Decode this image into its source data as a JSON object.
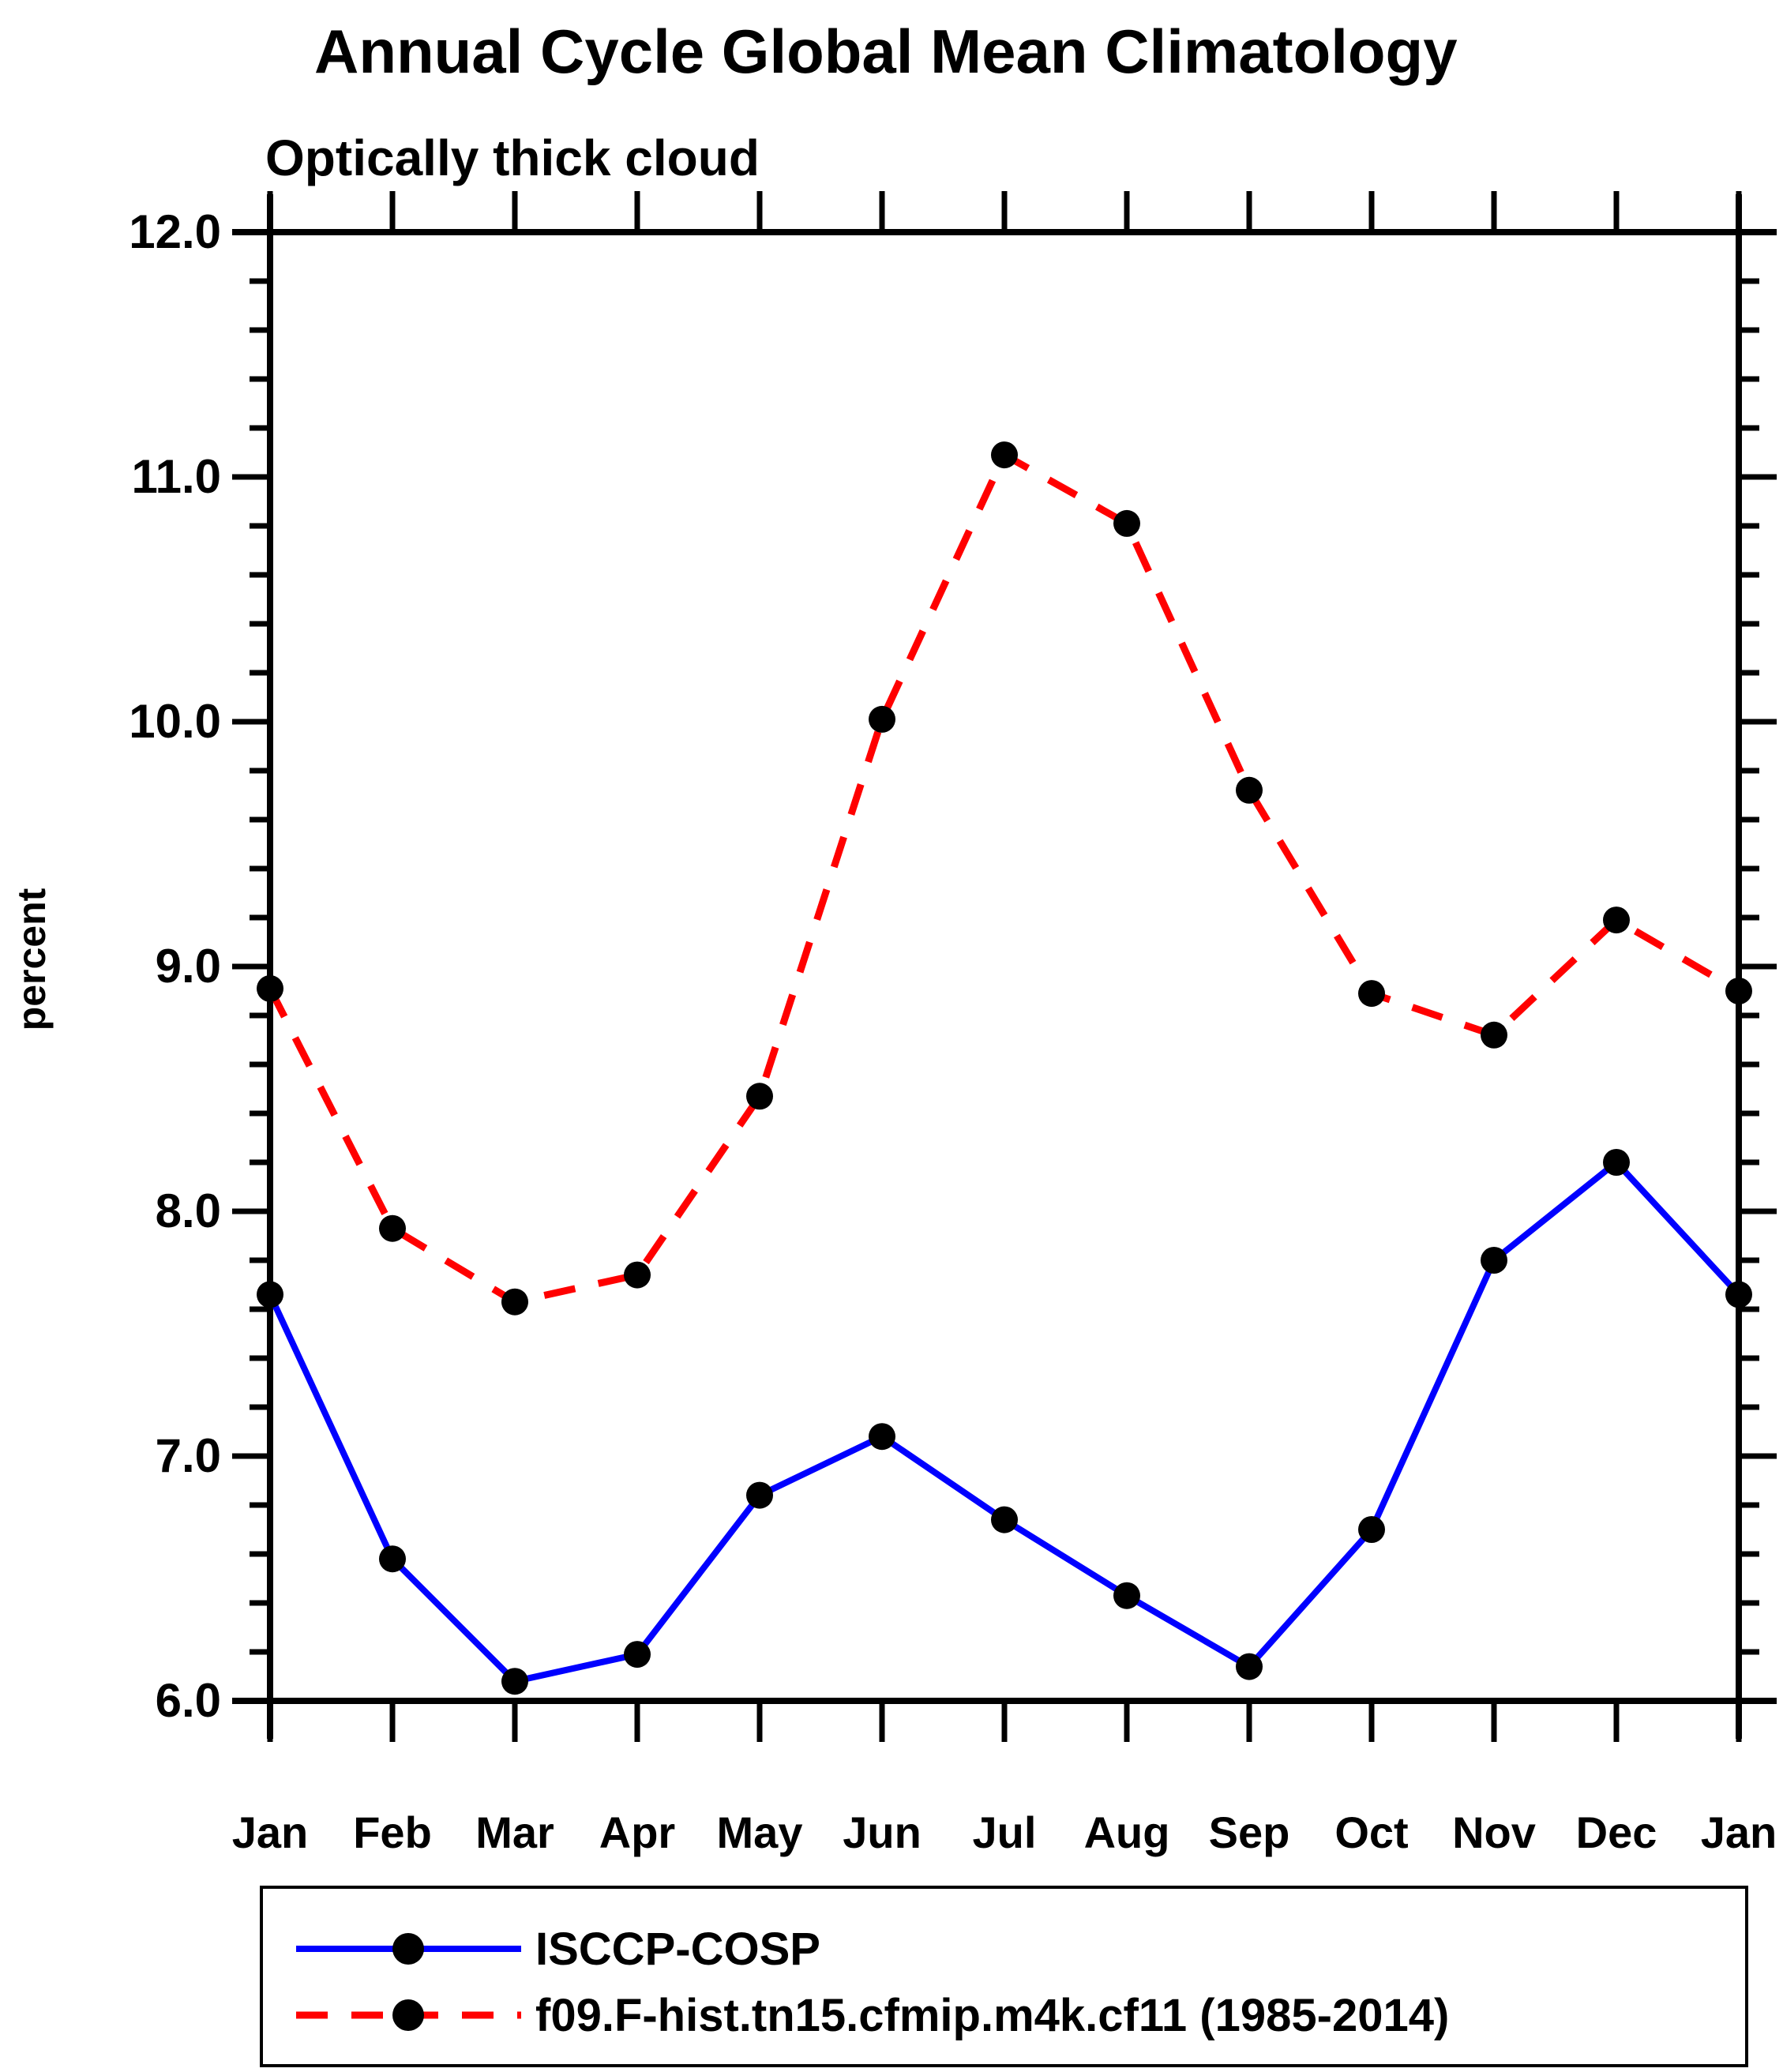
{
  "chart": {
    "title": "Annual Cycle Global Mean Climatology",
    "subtitle": "Optically thick cloud",
    "ylabel": "percent"
  },
  "chart_data": {
    "type": "line",
    "title": "Annual Cycle Global Mean Climatology",
    "subtitle": "Optically thick cloud",
    "xlabel": "",
    "ylabel": "percent",
    "categories": [
      "Jan",
      "Feb",
      "Mar",
      "Apr",
      "May",
      "Jun",
      "Jul",
      "Aug",
      "Sep",
      "Oct",
      "Nov",
      "Dec",
      "Jan"
    ],
    "series": [
      {
        "name": "ISCCP-COSP",
        "color": "#0000ff",
        "line_style": "solid",
        "marker": "filled-circle",
        "marker_color": "#000000",
        "values": [
          7.66,
          6.58,
          6.08,
          6.19,
          6.84,
          7.08,
          6.74,
          6.43,
          6.14,
          6.7,
          7.8,
          8.2,
          7.66
        ]
      },
      {
        "name": "f09.F-hist.tn15.cfmip.m4k.cf11 (1985-2014)",
        "color": "#ff0000",
        "line_style": "dashed",
        "marker": "filled-circle",
        "marker_color": "#000000",
        "values": [
          8.91,
          7.93,
          7.63,
          7.74,
          8.47,
          10.01,
          11.09,
          10.81,
          9.72,
          8.89,
          8.72,
          9.19,
          8.9
        ]
      }
    ],
    "ylim": [
      6.0,
      12.0
    ],
    "ytick_interval": 1.0,
    "ytick_minor_interval": 0.2,
    "ytick_labels": [
      "6.0",
      "7.0",
      "8.0",
      "9.0",
      "10.0",
      "11.0",
      "12.0"
    ],
    "grid": false,
    "legend_position": "bottom",
    "axis_color": "#000000"
  }
}
